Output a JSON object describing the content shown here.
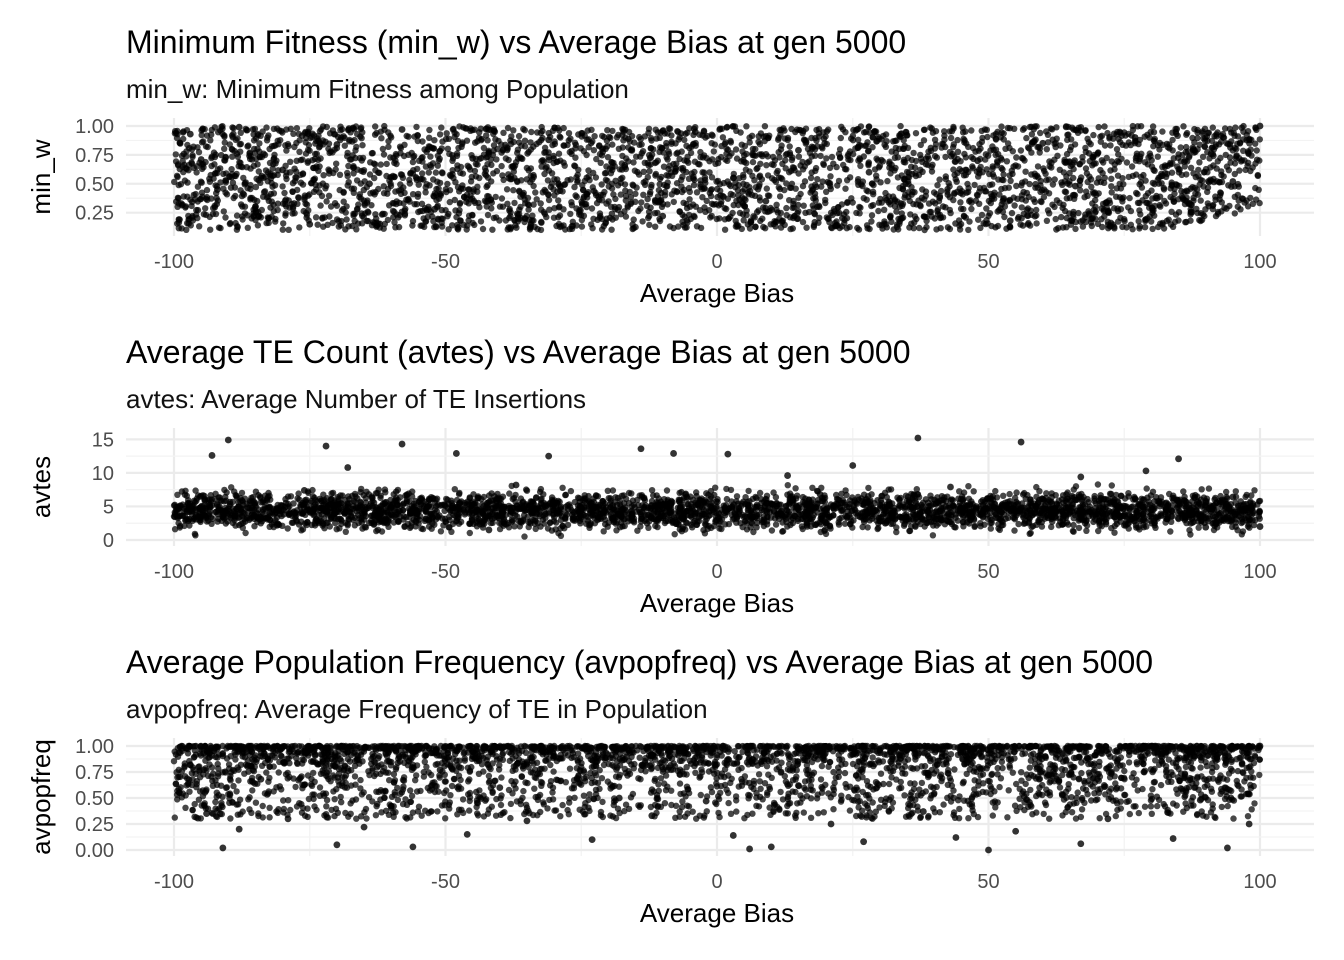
{
  "chart_data": [
    {
      "type": "scatter",
      "title": "Minimum Fitness (min_w) vs Average Bias at gen 5000",
      "subtitle": "min_w: Minimum Fitness among Population",
      "xlabel": "Average Bias",
      "ylabel": "min_w",
      "xlim": [
        -100,
        100
      ],
      "ylim": [
        0.1,
        1.0
      ],
      "xticks": [
        -100,
        -50,
        0,
        50,
        100
      ],
      "xtick_labels": [
        "-100",
        "-50",
        "0",
        "50",
        "100"
      ],
      "yticks": [
        0.25,
        0.5,
        0.75,
        1.0
      ],
      "ytick_labels": [
        "0.25",
        "0.50",
        "0.75",
        "1.00"
      ],
      "grid": true,
      "point_color": "#000000",
      "points": [
        [
          -99,
          0.19
        ],
        [
          -97,
          0.93
        ],
        [
          -95,
          0.71
        ],
        [
          -92,
          0.45
        ],
        [
          -88,
          0.99
        ],
        [
          -85,
          0.3
        ],
        [
          -80,
          0.62
        ],
        [
          -75,
          0.15
        ],
        [
          -70,
          0.84
        ],
        [
          -64,
          0.5
        ],
        [
          -58,
          0.97
        ],
        [
          -52,
          0.28
        ],
        [
          -45,
          0.72
        ],
        [
          -38,
          0.12
        ],
        [
          -31,
          0.88
        ],
        [
          -24,
          0.41
        ],
        [
          -17,
          0.66
        ],
        [
          -10,
          0.22
        ],
        [
          -4,
          0.95
        ],
        [
          3,
          0.55
        ],
        [
          9,
          0.35
        ],
        [
          15,
          0.79
        ],
        [
          22,
          0.14
        ],
        [
          28,
          0.6
        ],
        [
          35,
          0.92
        ],
        [
          41,
          0.38
        ],
        [
          48,
          0.7
        ],
        [
          54,
          0.18
        ],
        [
          60,
          0.85
        ],
        [
          66,
          0.48
        ],
        [
          72,
          0.26
        ],
        [
          77,
          0.9
        ],
        [
          82,
          0.57
        ],
        [
          87,
          0.33
        ],
        [
          91,
          0.76
        ],
        [
          95,
          0.52
        ],
        [
          98,
          0.88
        ],
        [
          100,
          1.0
        ]
      ]
    },
    {
      "type": "scatter",
      "title": "Average TE Count (avtes) vs Average Bias at gen 5000",
      "subtitle": "avtes: Average Number of TE Insertions",
      "xlabel": "Average Bias",
      "ylabel": "avtes",
      "xlim": [
        -100,
        100
      ],
      "ylim": [
        0,
        15.5
      ],
      "xticks": [
        -100,
        -50,
        0,
        50,
        100
      ],
      "xtick_labels": [
        "-100",
        "-50",
        "0",
        "50",
        "100"
      ],
      "yticks": [
        0,
        5,
        10,
        15
      ],
      "ytick_labels": [
        "0",
        "5",
        "10",
        "15"
      ],
      "grid": true,
      "point_color": "#000000",
      "points": [
        [
          -99,
          4.8
        ],
        [
          -96,
          3.1
        ],
        [
          -93,
          12.6
        ],
        [
          -90,
          14.9
        ],
        [
          -86,
          5.6
        ],
        [
          -81,
          2.2
        ],
        [
          -76,
          7.4
        ],
        [
          -72,
          14.0
        ],
        [
          -68,
          10.8
        ],
        [
          -63,
          3.9
        ],
        [
          -58,
          14.3
        ],
        [
          -53,
          6.1
        ],
        [
          -48,
          12.9
        ],
        [
          -42,
          1.5
        ],
        [
          -37,
          8.2
        ],
        [
          -31,
          12.5
        ],
        [
          -25,
          4.4
        ],
        [
          -19,
          2.7
        ],
        [
          -14,
          13.6
        ],
        [
          -8,
          12.9
        ],
        [
          -3,
          5.2
        ],
        [
          2,
          12.8
        ],
        [
          7,
          3.4
        ],
        [
          13,
          9.6
        ],
        [
          19,
          6.8
        ],
        [
          25,
          11.1
        ],
        [
          31,
          2.5
        ],
        [
          37,
          15.2
        ],
        [
          43,
          7.9
        ],
        [
          49,
          4.1
        ],
        [
          56,
          14.6
        ],
        [
          61,
          3.3
        ],
        [
          67,
          9.4
        ],
        [
          73,
          5.7
        ],
        [
          79,
          10.3
        ],
        [
          85,
          12.1
        ],
        [
          90,
          1.9
        ],
        [
          95,
          6.4
        ],
        [
          100,
          2.0
        ]
      ]
    },
    {
      "type": "scatter",
      "title": "Average Population Frequency (avpopfreq) vs Average Bias at gen 5000",
      "subtitle": "avpopfreq: Average Frequency of TE in Population",
      "xlabel": "Average Bias",
      "ylabel": "avpopfreq",
      "xlim": [
        -100,
        100
      ],
      "ylim": [
        0,
        1.0
      ],
      "xticks": [
        -100,
        -50,
        0,
        50,
        100
      ],
      "xtick_labels": [
        "-100",
        "-50",
        "0",
        "50",
        "100"
      ],
      "yticks": [
        0,
        0.25,
        0.5,
        0.75,
        1.0
      ],
      "ytick_labels": [
        "0.00",
        "0.25",
        "0.50",
        "0.75",
        "1.00"
      ],
      "grid": true,
      "point_color": "#000000",
      "points": [
        [
          -99,
          0.55
        ],
        [
          -97,
          0.82
        ],
        [
          -94,
          0.35
        ],
        [
          -91,
          0.02
        ],
        [
          -88,
          0.2
        ],
        [
          -84,
          0.68
        ],
        [
          -79,
          0.3
        ],
        [
          -74,
          0.91
        ],
        [
          -70,
          0.05
        ],
        [
          -65,
          0.22
        ],
        [
          -60,
          0.42
        ],
        [
          -56,
          0.03
        ],
        [
          -51,
          0.77
        ],
        [
          -46,
          0.15
        ],
        [
          -40,
          0.6
        ],
        [
          -35,
          0.28
        ],
        [
          -29,
          0.88
        ],
        [
          -23,
          0.1
        ],
        [
          -18,
          0.5
        ],
        [
          -12,
          0.33
        ],
        [
          -7,
          0.95
        ],
        [
          -2,
          0.47
        ],
        [
          3,
          0.14
        ],
        [
          6,
          0.01
        ],
        [
          10,
          0.03
        ],
        [
          15,
          0.62
        ],
        [
          21,
          0.25
        ],
        [
          27,
          0.08
        ],
        [
          32,
          0.85
        ],
        [
          38,
          0.37
        ],
        [
          44,
          0.12
        ],
        [
          50,
          0.0
        ],
        [
          55,
          0.18
        ],
        [
          61,
          0.72
        ],
        [
          67,
          0.06
        ],
        [
          72,
          0.3
        ],
        [
          78,
          0.9
        ],
        [
          84,
          0.11
        ],
        [
          89,
          0.48
        ],
        [
          94,
          0.02
        ],
        [
          98,
          0.25
        ],
        [
          100,
          1.0
        ]
      ]
    }
  ]
}
